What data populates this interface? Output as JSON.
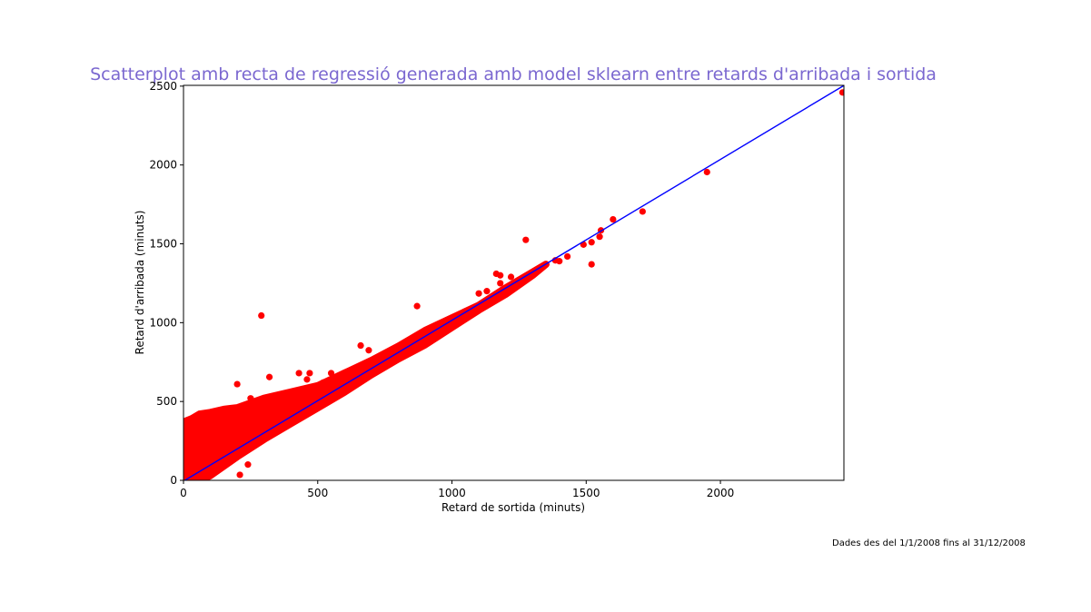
{
  "chart_data": {
    "type": "scatter",
    "title": "Scatterplot amb recta de regressió generada amb model sklearn entre retards d'arribada i sortida",
    "xlabel": "Retard de sortida (minuts)",
    "ylabel": "Retard d'arribada (minuts)",
    "xlim": [
      0,
      2460
    ],
    "ylim": [
      0,
      2505
    ],
    "xticks": [
      "0",
      "500",
      "1000",
      "1500",
      "2000"
    ],
    "xtick_values": [
      0,
      500,
      1000,
      1500,
      2000
    ],
    "yticks": [
      "0",
      "500",
      "1000",
      "1500",
      "2000",
      "2500"
    ],
    "ytick_values": [
      0,
      500,
      1000,
      1500,
      2000,
      2500
    ],
    "grid": false,
    "note": "Dades des del 1/1/2008 fins al 31/12/2008",
    "colors": {
      "title": "#7b68d0",
      "points": "#ff0000",
      "regression_line": "#0000ff"
    },
    "regression_line": {
      "slope": 1.02,
      "intercept": -5
    },
    "dense_region": {
      "description_points": [
        [
          0,
          0
        ],
        [
          0,
          370
        ],
        [
          30,
          390
        ],
        [
          60,
          420
        ],
        [
          100,
          430
        ],
        [
          150,
          450
        ],
        [
          200,
          460
        ],
        [
          300,
          520
        ],
        [
          400,
          560
        ],
        [
          500,
          600
        ],
        [
          600,
          680
        ],
        [
          700,
          760
        ],
        [
          800,
          850
        ],
        [
          900,
          950
        ],
        [
          1000,
          1030
        ],
        [
          1100,
          1110
        ],
        [
          1200,
          1220
        ],
        [
          1300,
          1320
        ],
        [
          1350,
          1370
        ],
        [
          1300,
          1300
        ],
        [
          1200,
          1180
        ],
        [
          1100,
          1080
        ],
        [
          1000,
          970
        ],
        [
          900,
          860
        ],
        [
          800,
          770
        ],
        [
          700,
          670
        ],
        [
          600,
          560
        ],
        [
          500,
          460
        ],
        [
          400,
          360
        ],
        [
          300,
          260
        ],
        [
          200,
          150
        ],
        [
          150,
          90
        ],
        [
          100,
          30
        ],
        [
          60,
          0
        ]
      ]
    },
    "outliers": [
      [
        2455,
        2460
      ],
      [
        1950,
        1955
      ],
      [
        1710,
        1705
      ],
      [
        1600,
        1655
      ],
      [
        1555,
        1585
      ],
      [
        1550,
        1545
      ],
      [
        1520,
        1510
      ],
      [
        1490,
        1495
      ],
      [
        1520,
        1370
      ],
      [
        1430,
        1420
      ],
      [
        1400,
        1390
      ],
      [
        1385,
        1395
      ],
      [
        1275,
        1525
      ],
      [
        1220,
        1290
      ],
      [
        1180,
        1300
      ],
      [
        1165,
        1310
      ],
      [
        1180,
        1250
      ],
      [
        1130,
        1200
      ],
      [
        1100,
        1185
      ],
      [
        870,
        1105
      ],
      [
        290,
        1045
      ],
      [
        660,
        855
      ],
      [
        690,
        825
      ],
      [
        320,
        655
      ],
      [
        430,
        680
      ],
      [
        470,
        680
      ],
      [
        550,
        680
      ],
      [
        200,
        610
      ],
      [
        250,
        520
      ],
      [
        240,
        100
      ],
      [
        210,
        35
      ],
      [
        460,
        640
      ],
      [
        520,
        620
      ]
    ]
  }
}
